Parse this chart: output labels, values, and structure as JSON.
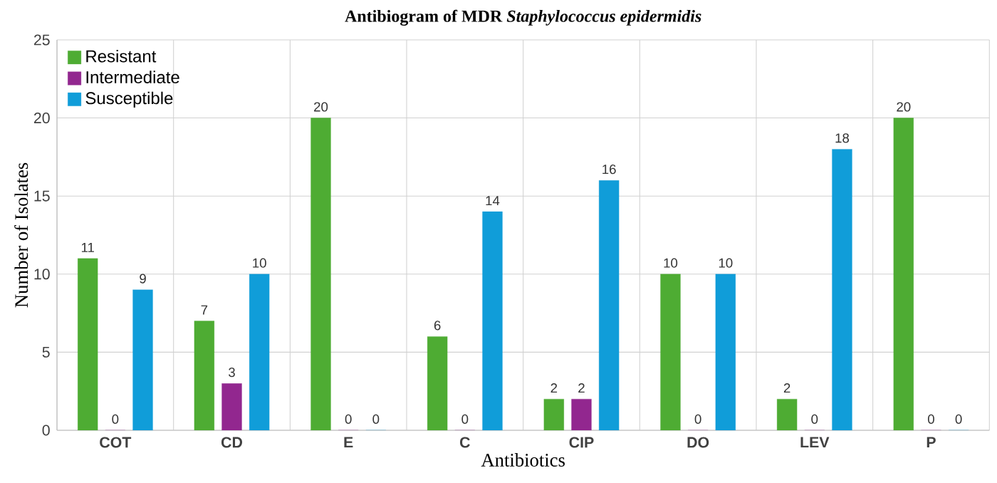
{
  "chart_data": {
    "type": "bar",
    "title": "Antibiogram of MDR *Staphylococcus epidermidis*",
    "xlabel": "Antibiotics",
    "ylabel": "Number of Isolates",
    "categories": [
      "COT",
      "CD",
      "E",
      "C",
      "CIP",
      "DO",
      "LEV",
      "P"
    ],
    "series": [
      {
        "name": "Resistant",
        "color": "#4eac33",
        "values": [
          11,
          7,
          20,
          6,
          2,
          10,
          2,
          20
        ]
      },
      {
        "name": "Intermediate",
        "color": "#92278f",
        "values": [
          0,
          3,
          0,
          0,
          2,
          0,
          0,
          0
        ]
      },
      {
        "name": "Susceptible",
        "color": "#109dd9",
        "values": [
          9,
          10,
          0,
          14,
          16,
          10,
          18,
          0
        ]
      }
    ],
    "ylim": [
      0,
      25
    ],
    "yticks": [
      0,
      5,
      10,
      15,
      20,
      25
    ],
    "grid": true,
    "legend": "top left",
    "data_labels": true
  }
}
